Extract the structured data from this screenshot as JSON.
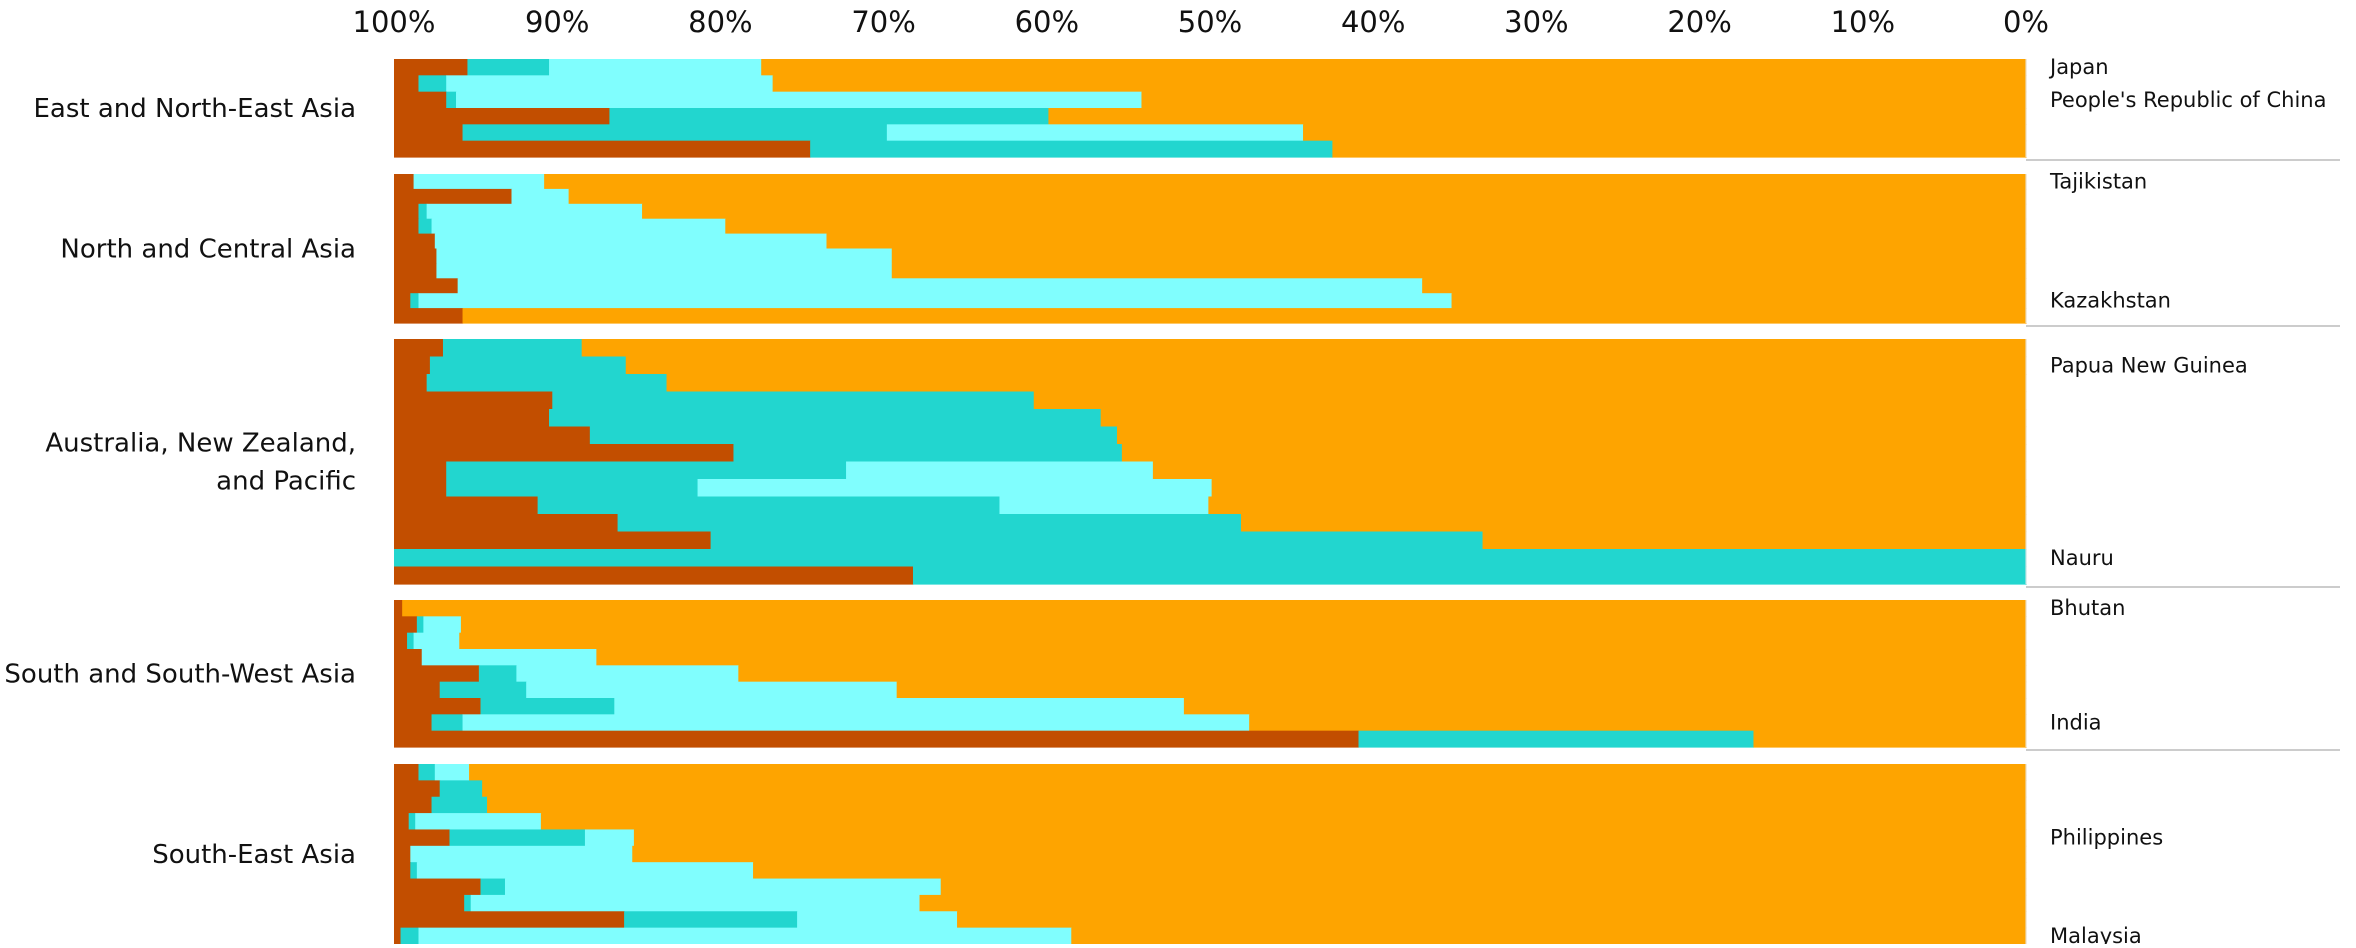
{
  "chart_data": {
    "type": "bar",
    "orientation": "horizontal-stacked-100",
    "x_axis_reversed": true,
    "xlim": [
      0,
      100
    ],
    "x_ticks": [
      "100%",
      "90%",
      "80%",
      "70%",
      "60%",
      "50%",
      "40%",
      "30%",
      "20%",
      "10%",
      "0%"
    ],
    "segment_colors": [
      "#c24e00",
      "#22d6cf",
      "#80fefe",
      "#fea400"
    ],
    "groups": [
      {
        "label": "East and North-East Asia",
        "label_lines": [
          "East and North-East Asia"
        ],
        "bars": [
          [
            4.5,
            5.0,
            13.0,
            77.5
          ],
          [
            1.5,
            1.7,
            20.0,
            76.8
          ],
          [
            3.2,
            0.6,
            42.0,
            54.2
          ],
          [
            13.2,
            26.9,
            0.0,
            59.9
          ],
          [
            4.2,
            26.0,
            25.5,
            44.3
          ],
          [
            25.5,
            32.0,
            0.0,
            42.5
          ]
        ],
        "annotated_rows": [
          {
            "row": 0,
            "label": "Japan"
          },
          {
            "row": 2,
            "label": "People's Republic of China"
          }
        ],
        "country_labels": [
          "Japan",
          "People's Republic of China"
        ]
      },
      {
        "label": "North and Central Asia",
        "label_lines": [
          "North and Central Asia"
        ],
        "bars": [
          [
            1.2,
            0.0,
            8.0,
            90.8
          ],
          [
            7.2,
            0.0,
            3.5,
            89.3
          ],
          [
            1.5,
            0.5,
            13.2,
            84.8
          ],
          [
            1.5,
            0.8,
            18.0,
            79.7
          ],
          [
            2.5,
            0.0,
            24.0,
            73.5
          ],
          [
            2.6,
            0.0,
            27.9,
            69.5
          ],
          [
            2.6,
            0.0,
            27.9,
            69.5
          ],
          [
            3.9,
            0.0,
            59.1,
            37.0
          ],
          [
            1.0,
            0.5,
            63.3,
            35.2
          ],
          [
            4.2,
            0.0,
            0.0,
            95.8
          ]
        ],
        "annotated_rows": [
          {
            "row": 0,
            "label": "Tajikistan"
          },
          {
            "row": 8,
            "label": "Kazakhstan"
          }
        ],
        "country_labels": [
          "Tajikistan",
          "Kazakhstan"
        ]
      },
      {
        "label": "Australia, New Zealand, and Pacific",
        "label_lines": [
          "Australia, New Zealand,",
          "and Pacific"
        ],
        "bars": [
          [
            3.0,
            8.5,
            0.0,
            88.5
          ],
          [
            2.2,
            12.0,
            0.0,
            85.8
          ],
          [
            2.0,
            14.7,
            0.0,
            83.3
          ],
          [
            9.7,
            29.5,
            0.0,
            60.8
          ],
          [
            9.5,
            33.8,
            0.0,
            56.7
          ],
          [
            12.0,
            32.3,
            0.0,
            55.7
          ],
          [
            20.8,
            23.8,
            0.0,
            55.4
          ],
          [
            3.2,
            24.5,
            18.8,
            53.5
          ],
          [
            3.2,
            15.4,
            31.5,
            49.9
          ],
          [
            8.8,
            28.3,
            12.8,
            50.1
          ],
          [
            13.7,
            38.2,
            0.0,
            48.1
          ],
          [
            19.4,
            47.3,
            0.0,
            33.3
          ],
          [
            0.0,
            100.0,
            0.0,
            0.0
          ],
          [
            31.8,
            68.2,
            0.0,
            0.0
          ]
        ],
        "annotated_rows": [
          {
            "row": 1,
            "label": "Papua New Guinea"
          },
          {
            "row": 12,
            "label": "Nauru"
          }
        ],
        "country_labels": [
          "Papua New Guinea",
          "Nauru"
        ]
      },
      {
        "label": "South and South-West Asia",
        "label_lines": [
          "South and South-West Asia"
        ],
        "bars": [
          [
            0.5,
            0.0,
            0.0,
            99.5
          ],
          [
            1.4,
            0.4,
            2.3,
            95.9
          ],
          [
            0.8,
            0.4,
            2.8,
            96.0
          ],
          [
            1.7,
            0.0,
            10.7,
            87.6
          ],
          [
            5.2,
            2.3,
            13.6,
            78.9
          ],
          [
            2.8,
            5.3,
            22.7,
            69.2
          ],
          [
            5.3,
            8.2,
            34.9,
            51.6
          ],
          [
            2.3,
            1.9,
            48.2,
            47.6
          ],
          [
            59.1,
            24.2,
            0.0,
            16.7
          ]
        ],
        "annotated_rows": [
          {
            "row": 0,
            "label": "Bhutan"
          },
          {
            "row": 7,
            "label": "India"
          }
        ],
        "country_labels": [
          "Bhutan",
          "India"
        ]
      },
      {
        "label": "South-East Asia",
        "label_lines": [
          "South-East Asia"
        ],
        "bars": [
          [
            1.5,
            1.0,
            2.1,
            95.4
          ],
          [
            2.8,
            2.6,
            0.0,
            94.6
          ],
          [
            2.3,
            3.4,
            0.0,
            94.3
          ],
          [
            0.9,
            0.4,
            7.7,
            91.0
          ],
          [
            3.4,
            8.3,
            3.0,
            85.3
          ],
          [
            1.0,
            0.0,
            13.6,
            85.4
          ],
          [
            1.0,
            0.4,
            20.6,
            78.0
          ],
          [
            5.3,
            1.5,
            26.7,
            66.5
          ],
          [
            4.3,
            0.4,
            27.5,
            67.8
          ],
          [
            14.1,
            10.6,
            9.8,
            65.5
          ],
          [
            0.4,
            1.1,
            40.0,
            58.5
          ]
        ],
        "annotated_rows": [
          {
            "row": 4,
            "label": "Philippines"
          },
          {
            "row": 10,
            "label": "Malaysia"
          }
        ],
        "country_labels": [
          "Philippines",
          "Malaysia"
        ]
      }
    ]
  }
}
